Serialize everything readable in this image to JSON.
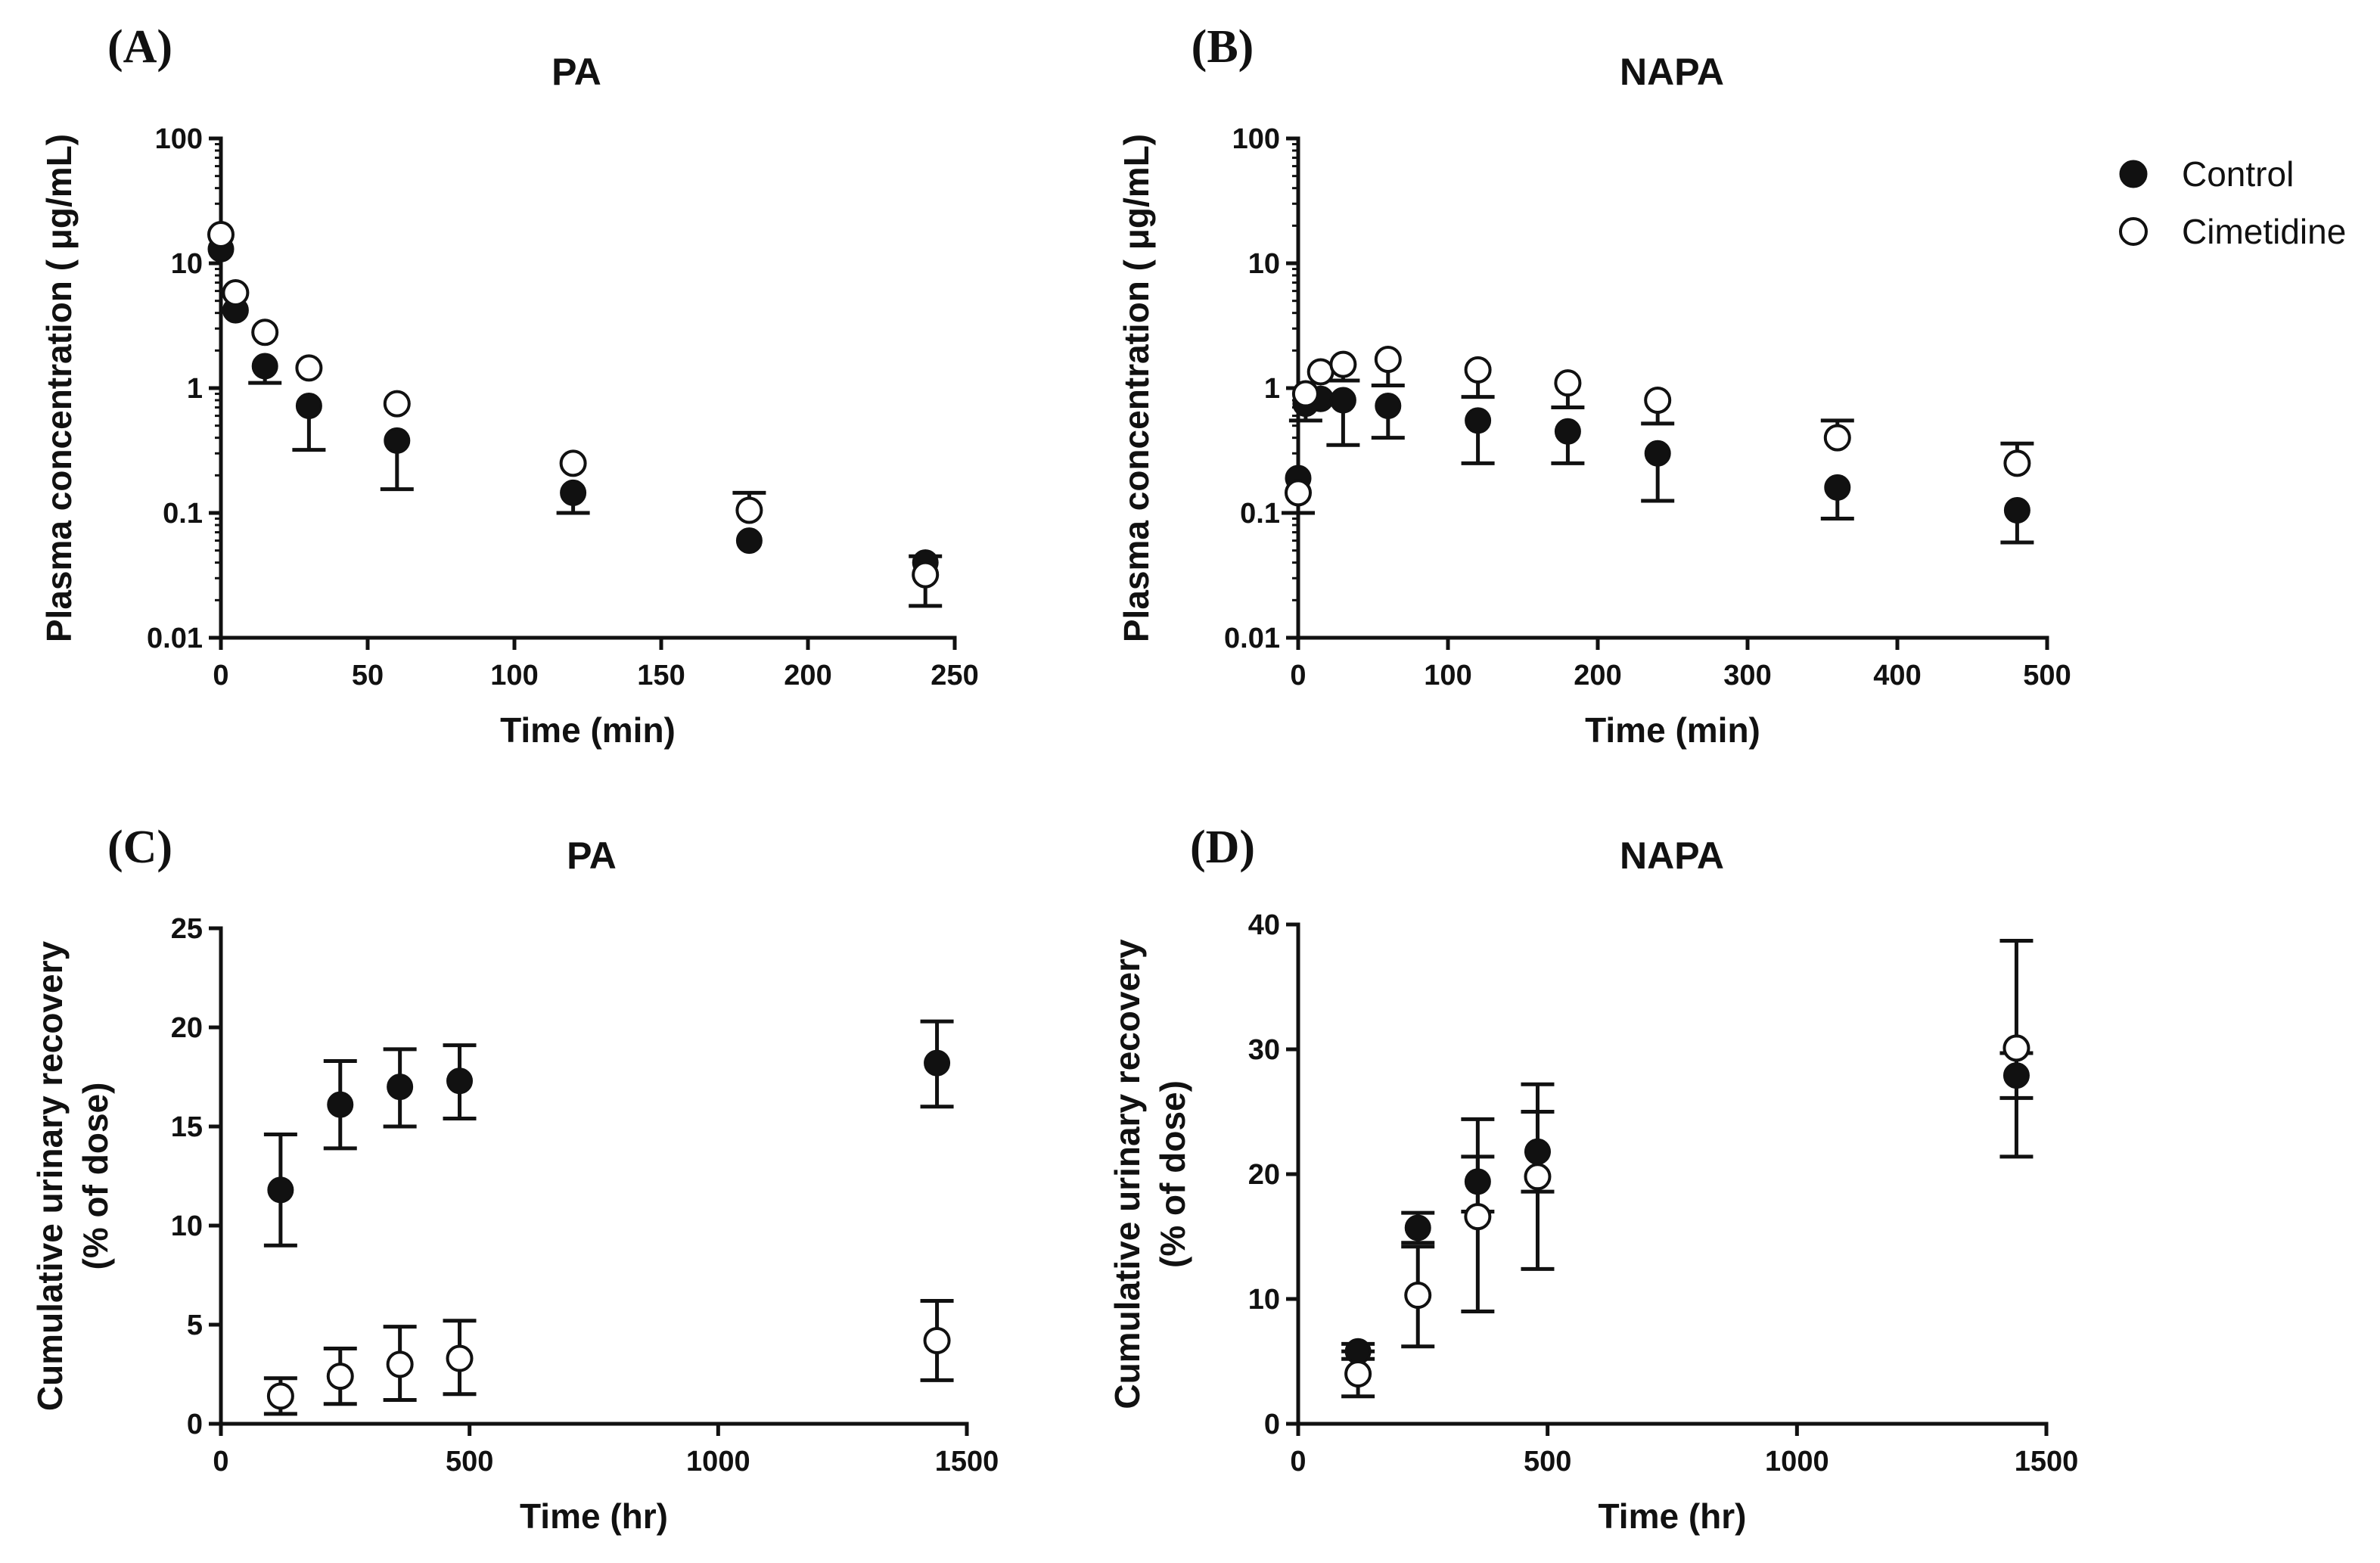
{
  "legend": {
    "entries": [
      {
        "name": "Control",
        "marker": "filled-circle"
      },
      {
        "name": "Cimetidine",
        "marker": "open-circle"
      }
    ],
    "position": "top-right"
  },
  "chart_data": [
    {
      "id": "A",
      "panel_label": "(A)",
      "type": "scatter",
      "title": "PA",
      "xlabel": "Time (min)",
      "ylabel": "Plasma concentration ( μg/mL)",
      "xscale": "linear",
      "yscale": "log",
      "xlim": [
        0,
        250
      ],
      "ylim": [
        0.01,
        100
      ],
      "xticks": [
        0,
        50,
        100,
        150,
        200,
        250
      ],
      "xtick_labels": [
        "0",
        "50",
        "100",
        "150",
        "200",
        "250"
      ],
      "yticks": [
        0.01,
        0.1,
        1,
        10,
        100
      ],
      "ytick_labels": [
        "0.01",
        "0.1",
        "1",
        "10",
        "100"
      ],
      "series": [
        {
          "name": "Control",
          "marker": "filled",
          "x": [
            0,
            5,
            15,
            30,
            60,
            120,
            180,
            240
          ],
          "y": [
            13,
            4.2,
            1.5,
            0.72,
            0.38,
            0.145,
            0.06,
            0.04
          ],
          "err_low": [
            null,
            null,
            1.1,
            0.32,
            0.155,
            0.1,
            null,
            null
          ],
          "err_high": [
            null,
            null,
            null,
            null,
            null,
            null,
            null,
            null
          ]
        },
        {
          "name": "Cimetidine",
          "marker": "open",
          "x": [
            0,
            5,
            15,
            30,
            60,
            120,
            180,
            240
          ],
          "y": [
            17,
            5.8,
            2.8,
            1.45,
            0.75,
            0.25,
            0.105,
            0.032
          ],
          "err_low": [
            null,
            null,
            null,
            null,
            null,
            null,
            null,
            0.018
          ],
          "err_high": [
            null,
            null,
            null,
            null,
            null,
            null,
            0.145,
            0.045
          ]
        }
      ]
    },
    {
      "id": "B",
      "panel_label": "(B)",
      "type": "scatter",
      "title": "NAPA",
      "xlabel": "Time (min)",
      "ylabel": "Plasma concentration ( μg/mL)",
      "xscale": "linear",
      "yscale": "log",
      "xlim": [
        0,
        500
      ],
      "ylim": [
        0.01,
        100
      ],
      "xticks": [
        0,
        100,
        200,
        300,
        400,
        500
      ],
      "xtick_labels": [
        "0",
        "100",
        "200",
        "300",
        "400",
        "500"
      ],
      "yticks": [
        0.01,
        0.1,
        1,
        10,
        100
      ],
      "ytick_labels": [
        "0.01",
        "0.1",
        "1",
        "10",
        "100"
      ],
      "series": [
        {
          "name": "Control",
          "marker": "filled",
          "x": [
            0,
            5,
            15,
            30,
            60,
            120,
            180,
            240,
            360,
            480
          ],
          "y": [
            0.19,
            0.75,
            0.82,
            0.8,
            0.72,
            0.55,
            0.45,
            0.3,
            0.16,
            0.105
          ],
          "err_low": [
            null,
            null,
            null,
            0.35,
            0.4,
            0.25,
            0.25,
            0.125,
            0.09,
            0.058
          ],
          "err_high": [
            null,
            null,
            null,
            null,
            null,
            null,
            null,
            null,
            null,
            null
          ]
        },
        {
          "name": "Cimetidine",
          "marker": "open",
          "x": [
            0,
            5,
            15,
            30,
            60,
            120,
            180,
            240,
            360,
            480
          ],
          "y": [
            0.145,
            0.9,
            1.35,
            1.55,
            1.7,
            1.4,
            1.1,
            0.8,
            0.4,
            0.25
          ],
          "err_low": [
            0.1,
            0.55,
            null,
            null,
            null,
            null,
            null,
            null,
            null,
            null
          ],
          "err_high": [
            null,
            null,
            null,
            1.15,
            1.05,
            0.85,
            0.7,
            0.52,
            0.55,
            0.36
          ]
        }
      ]
    },
    {
      "id": "C",
      "panel_label": "(C)",
      "type": "scatter",
      "title": "PA",
      "xlabel": "Time (hr)",
      "ylabel": "Cumulative urinary recovery",
      "ylabel2": "(% of dose)",
      "xscale": "linear",
      "yscale": "linear",
      "xlim": [
        0,
        1500
      ],
      "ylim": [
        0,
        25
      ],
      "xticks": [
        0,
        500,
        1000,
        1500
      ],
      "xtick_labels": [
        "0",
        "500",
        "1000",
        "1500"
      ],
      "yticks": [
        0,
        5,
        10,
        15,
        20,
        25
      ],
      "ytick_labels": [
        "0",
        "5",
        "10",
        "15",
        "20",
        "25"
      ],
      "series": [
        {
          "name": "Control",
          "marker": "filled",
          "x": [
            120,
            240,
            360,
            480,
            1440
          ],
          "y": [
            11.8,
            16.1,
            17.0,
            17.3,
            18.2
          ],
          "err_low": [
            9.0,
            13.9,
            15.0,
            15.4,
            16.0
          ],
          "err_high": [
            14.6,
            18.3,
            18.9,
            19.1,
            20.3
          ]
        },
        {
          "name": "Cimetidine",
          "marker": "open",
          "x": [
            120,
            240,
            360,
            480,
            1440
          ],
          "y": [
            1.4,
            2.4,
            3.0,
            3.3,
            4.2
          ],
          "err_low": [
            0.5,
            1.0,
            1.2,
            1.5,
            2.2
          ],
          "err_high": [
            2.3,
            3.8,
            4.9,
            5.2,
            6.2
          ]
        }
      ]
    },
    {
      "id": "D",
      "panel_label": "(D)",
      "type": "scatter",
      "title": "NAPA",
      "xlabel": "Time (hr)",
      "ylabel": "Cumulative urinary recovery",
      "ylabel2": "(% of dose)",
      "xscale": "linear",
      "yscale": "linear",
      "xlim": [
        0,
        1500
      ],
      "ylim": [
        0,
        40
      ],
      "xticks": [
        0,
        500,
        1000,
        1500
      ],
      "xtick_labels": [
        "0",
        "500",
        "1000",
        "1500"
      ],
      "yticks": [
        0,
        10,
        20,
        30,
        40
      ],
      "ytick_labels": [
        "0",
        "10",
        "20",
        "30",
        "40"
      ],
      "series": [
        {
          "name": "Control",
          "marker": "filled",
          "x": [
            120,
            240,
            360,
            480,
            1440
          ],
          "y": [
            5.8,
            15.7,
            19.4,
            21.8,
            27.9
          ],
          "err_low": [
            5.2,
            14.5,
            17.0,
            18.6,
            26.1
          ],
          "err_high": [
            6.4,
            16.9,
            21.4,
            25.0,
            29.7
          ]
        },
        {
          "name": "Cimetidine",
          "marker": "open",
          "x": [
            120,
            240,
            360,
            480,
            1440
          ],
          "y": [
            4.0,
            10.3,
            16.6,
            19.8,
            30.1
          ],
          "err_low": [
            2.2,
            6.2,
            9.0,
            12.4,
            21.4
          ],
          "err_high": [
            5.8,
            14.2,
            24.4,
            27.2,
            38.7
          ]
        }
      ]
    }
  ]
}
